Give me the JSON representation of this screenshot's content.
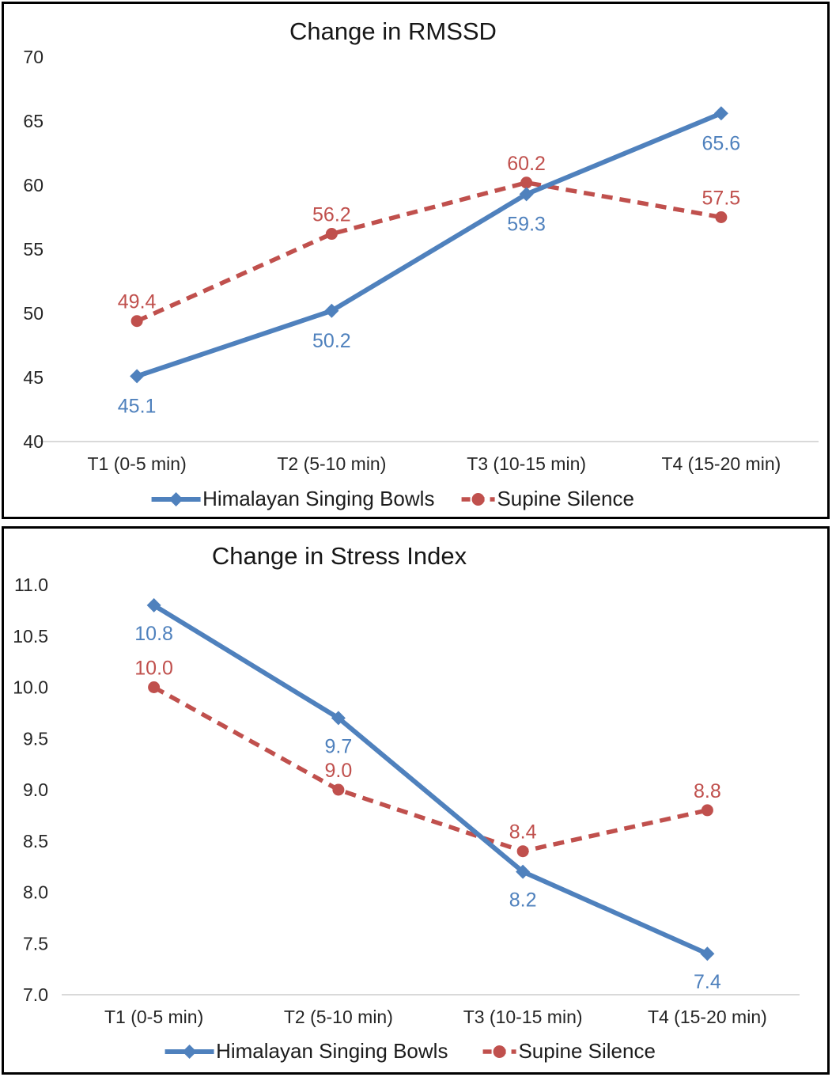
{
  "colors": {
    "series1": "#4F81BD",
    "series2": "#C0504D",
    "axis_line": "#D9D9D9",
    "text": "#262626",
    "border": "#000000"
  },
  "chart_data": [
    {
      "type": "line",
      "title": "Change in RMSSD",
      "categories": [
        "T1 (0-5 min)",
        "T2 (5-10 min)",
        "T3 (10-15 min)",
        "T4 (15-20 min)"
      ],
      "series": [
        {
          "name": "Himalayan Singing Bowls",
          "values": [
            45.1,
            50.2,
            59.3,
            65.6
          ],
          "color": "#4F81BD",
          "line": "solid",
          "marker": "diamond",
          "label_position": "below"
        },
        {
          "name": "Supine Silence",
          "values": [
            49.4,
            56.2,
            60.2,
            57.5
          ],
          "color": "#C0504D",
          "line": "dashed",
          "marker": "circle",
          "label_position": "above"
        }
      ],
      "ylim": [
        40,
        70
      ],
      "ytick_step": 5,
      "yticks": [
        "70",
        "65",
        "60",
        "55",
        "50",
        "45",
        "40"
      ],
      "grid": false,
      "data_labels": true,
      "legend_position": "bottom"
    },
    {
      "type": "line",
      "title": "Change in Stress Index",
      "categories": [
        "T1 (0-5 min)",
        "T2 (5-10 min)",
        "T3 (10-15 min)",
        "T4 (15-20 min)"
      ],
      "series": [
        {
          "name": "Himalayan Singing Bowls",
          "values": [
            10.8,
            9.7,
            8.2,
            7.4
          ],
          "color": "#4F81BD",
          "line": "solid",
          "marker": "diamond",
          "label_position": "below"
        },
        {
          "name": "Supine Silence",
          "values": [
            10.0,
            9.0,
            8.4,
            8.8
          ],
          "color": "#C0504D",
          "line": "dashed",
          "marker": "circle",
          "label_position": "above"
        }
      ],
      "ylim": [
        7.0,
        11.0
      ],
      "ytick_step": 0.5,
      "yticks": [
        "11.0",
        "10.5",
        "10.0",
        "9.5",
        "9.0",
        "8.5",
        "8.0",
        "7.5",
        "7.0"
      ],
      "grid": false,
      "data_labels": true,
      "legend_position": "bottom"
    }
  ]
}
